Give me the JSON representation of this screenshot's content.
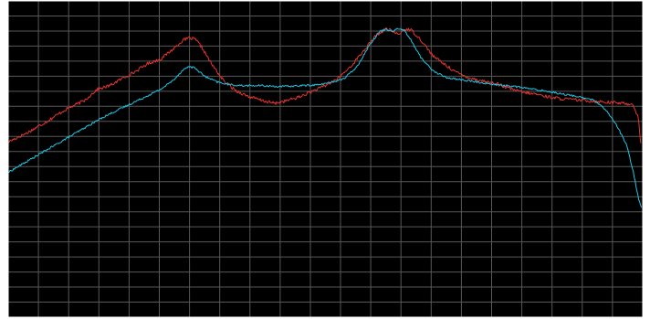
{
  "colors": {
    "background": "#000000",
    "frame": "#ffffff",
    "grid": "#585858",
    "series_1": "#e8342f",
    "series_2": "#1ec8e4"
  },
  "chart_data": {
    "type": "line",
    "title": "",
    "xlabel": "",
    "ylabel": "",
    "grid": true,
    "legend": "none",
    "xlim": [
      0,
      100
    ],
    "ylim": [
      0,
      100
    ],
    "x_grid_count": 21,
    "y_grid_count": 21,
    "series": [
      {
        "color": "#e8342f",
        "noise": 0.5,
        "points": [
          [
            0,
            55.4
          ],
          [
            3,
            58.3
          ],
          [
            6,
            61.8
          ],
          [
            9,
            65.6
          ],
          [
            12,
            68.5
          ],
          [
            14,
            72.0
          ],
          [
            16,
            73.2
          ],
          [
            18,
            75.5
          ],
          [
            20,
            77.6
          ],
          [
            22,
            80.2
          ],
          [
            24,
            81.6
          ],
          [
            26,
            84.8
          ],
          [
            27.5,
            87.5
          ],
          [
            28.5,
            88.3
          ],
          [
            29.5,
            87.8
          ],
          [
            30.5,
            85.4
          ],
          [
            32,
            80.2
          ],
          [
            34,
            74.6
          ],
          [
            36,
            71.5
          ],
          [
            38,
            69.7
          ],
          [
            40,
            68.5
          ],
          [
            42,
            67.6
          ],
          [
            44,
            68.5
          ],
          [
            46,
            69.7
          ],
          [
            48,
            71.5
          ],
          [
            50,
            73.2
          ],
          [
            52,
            75.5
          ],
          [
            54,
            79.3
          ],
          [
            56,
            84.2
          ],
          [
            58,
            89.1
          ],
          [
            59.5,
            91.1
          ],
          [
            60.5,
            90.5
          ],
          [
            61.5,
            89.3
          ],
          [
            62.5,
            91.1
          ],
          [
            63.5,
            90.8
          ],
          [
            65,
            87.8
          ],
          [
            67,
            82.5
          ],
          [
            69,
            79.6
          ],
          [
            71,
            77.0
          ],
          [
            73,
            75.5
          ],
          [
            75,
            74.6
          ],
          [
            77,
            73.8
          ],
          [
            79,
            72.3
          ],
          [
            81,
            71.1
          ],
          [
            83,
            70.6
          ],
          [
            85,
            69.7
          ],
          [
            87,
            69.1
          ],
          [
            89,
            68.8
          ],
          [
            91,
            68.5
          ],
          [
            93,
            68.2
          ],
          [
            95,
            67.9
          ],
          [
            97,
            67.6
          ],
          [
            98.5,
            67.3
          ],
          [
            99.3,
            63.0
          ],
          [
            99.7,
            55.0
          ]
        ]
      },
      {
        "color": "#1ec8e4",
        "noise": 0.3,
        "points": [
          [
            0,
            45.8
          ],
          [
            3,
            49.3
          ],
          [
            6,
            52.8
          ],
          [
            9,
            56.3
          ],
          [
            12,
            59.8
          ],
          [
            15,
            63.3
          ],
          [
            18,
            66.2
          ],
          [
            21,
            69.1
          ],
          [
            24,
            72.0
          ],
          [
            26,
            74.9
          ],
          [
            27.5,
            78.1
          ],
          [
            28.5,
            79.3
          ],
          [
            29.5,
            78.7
          ],
          [
            31,
            76.1
          ],
          [
            33,
            74.3
          ],
          [
            35,
            73.5
          ],
          [
            37,
            73.2
          ],
          [
            40,
            73.2
          ],
          [
            43,
            72.9
          ],
          [
            46,
            73.2
          ],
          [
            49,
            73.5
          ],
          [
            51,
            74.3
          ],
          [
            53,
            75.5
          ],
          [
            55,
            79.3
          ],
          [
            57,
            86.3
          ],
          [
            58.5,
            90.2
          ],
          [
            59.5,
            91.1
          ],
          [
            60.5,
            90.5
          ],
          [
            61.5,
            91.4
          ],
          [
            62.5,
            90.5
          ],
          [
            63.5,
            87.5
          ],
          [
            65,
            82.2
          ],
          [
            67,
            77.8
          ],
          [
            69,
            75.8
          ],
          [
            71,
            75.2
          ],
          [
            74,
            74.3
          ],
          [
            77,
            73.5
          ],
          [
            80,
            72.9
          ],
          [
            83,
            72.0
          ],
          [
            86,
            71.1
          ],
          [
            88,
            70.3
          ],
          [
            90,
            69.7
          ],
          [
            92,
            68.8
          ],
          [
            93,
            67.6
          ],
          [
            94.5,
            64.7
          ],
          [
            96,
            60.3
          ],
          [
            97.5,
            54.2
          ],
          [
            98.5,
            46.1
          ],
          [
            99.3,
            37.9
          ],
          [
            99.8,
            34.7
          ]
        ]
      }
    ]
  }
}
